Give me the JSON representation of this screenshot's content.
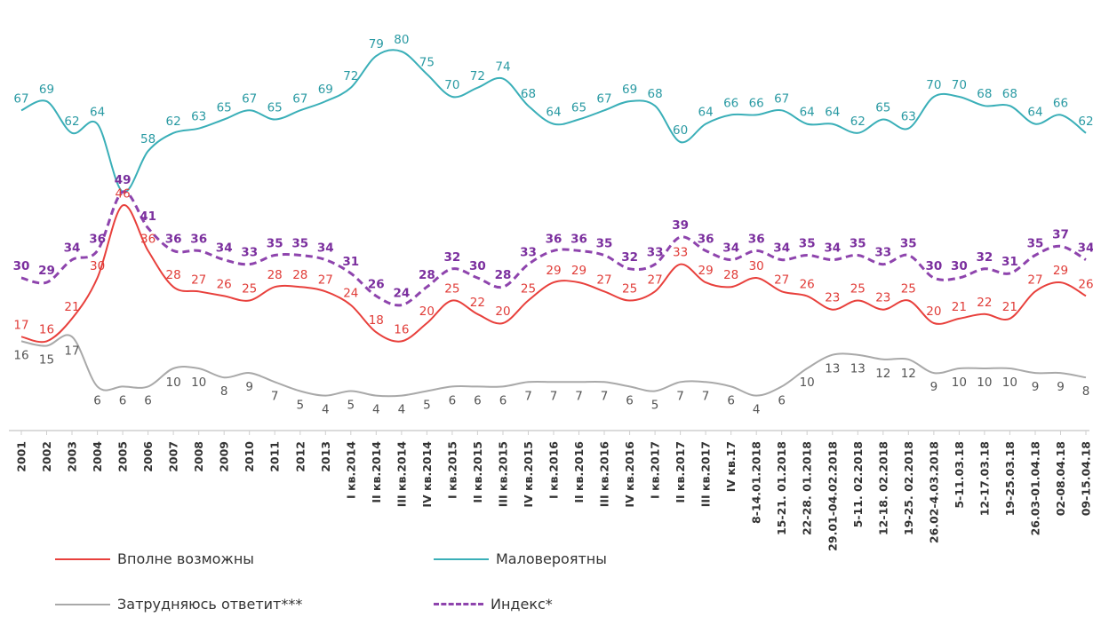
{
  "chart_data": {
    "type": "line",
    "categories": [
      "2001",
      "2002",
      "2003",
      "2004",
      "2005",
      "2006",
      "2007",
      "2008",
      "2009",
      "2010",
      "2011",
      "2012",
      "2013",
      "I кв.2014",
      "II кв.2014",
      "III кв.2014",
      "IV кв.2014",
      "I кв.2015",
      "II кв.2015",
      "III кв.2015",
      "IV кв.2015",
      "I кв.2016",
      "II кв.2016",
      "III кв.2016",
      "IV кв.2016",
      "I кв.2017",
      "II кв.2017",
      "III кв.2017",
      "IV кв.17",
      "8-14.01.2018",
      "15-21. 01.2018",
      "22-28. 01.2018",
      "29.01-04.02.2018",
      "5-11. 02.2018",
      "12-18. 02.2018",
      "19-25. 02.2018",
      "26.02-4.03.2018",
      "5-11.03.18",
      "12-17.03.18",
      "19-25.03.18",
      "26.03-01.04.18",
      "02-08.04.18",
      "09-15.04.18"
    ],
    "series": [
      {
        "name": "Маловероятны",
        "color": "#3aafb8",
        "dash": false,
        "values": [
          67,
          69,
          62,
          64,
          49,
          58,
          62,
          63,
          65,
          67,
          65,
          67,
          69,
          72,
          79,
          80,
          75,
          70,
          72,
          74,
          68,
          64,
          65,
          67,
          69,
          68,
          60,
          64,
          66,
          66,
          67,
          64,
          64,
          62,
          65,
          63,
          70,
          70,
          68,
          68,
          64,
          66,
          62
        ]
      },
      {
        "name": "Индекс*",
        "color": "#8e44ad",
        "dash": true,
        "values": [
          30,
          29,
          34,
          36,
          49,
          41,
          36,
          36,
          34,
          33,
          35,
          35,
          34,
          31,
          26,
          24,
          28,
          32,
          30,
          28,
          33,
          36,
          36,
          35,
          32,
          33,
          39,
          36,
          34,
          36,
          34,
          35,
          34,
          35,
          33,
          35,
          30,
          30,
          32,
          31,
          35,
          37,
          34
        ]
      },
      {
        "name": "Вполне возможны",
        "color": "#e8403c",
        "dash": false,
        "values": [
          17,
          16,
          21,
          30,
          46,
          36,
          28,
          27,
          26,
          25,
          28,
          28,
          27,
          24,
          18,
          16,
          20,
          25,
          22,
          20,
          25,
          29,
          29,
          27,
          25,
          27,
          33,
          29,
          28,
          30,
          27,
          26,
          23,
          25,
          23,
          25,
          20,
          21,
          22,
          21,
          27,
          29,
          26
        ]
      },
      {
        "name": "Затрудняюсь ответит***",
        "color": "#a9a9a9",
        "dash": false,
        "values": [
          16,
          15,
          17,
          6,
          6,
          6,
          10,
          10,
          8,
          9,
          7,
          5,
          4,
          5,
          4,
          4,
          5,
          6,
          6,
          6,
          7,
          7,
          7,
          7,
          6,
          5,
          7,
          7,
          6,
          4,
          6,
          10,
          13,
          13,
          12,
          12,
          9,
          10,
          10,
          10,
          9,
          9,
          8
        ]
      }
    ]
  },
  "legend": {
    "vpolne": "Вполне возможны",
    "malo": "Маловероятны",
    "zatrud": "Затрудняюсь ответит***",
    "index": "Индекс*"
  }
}
